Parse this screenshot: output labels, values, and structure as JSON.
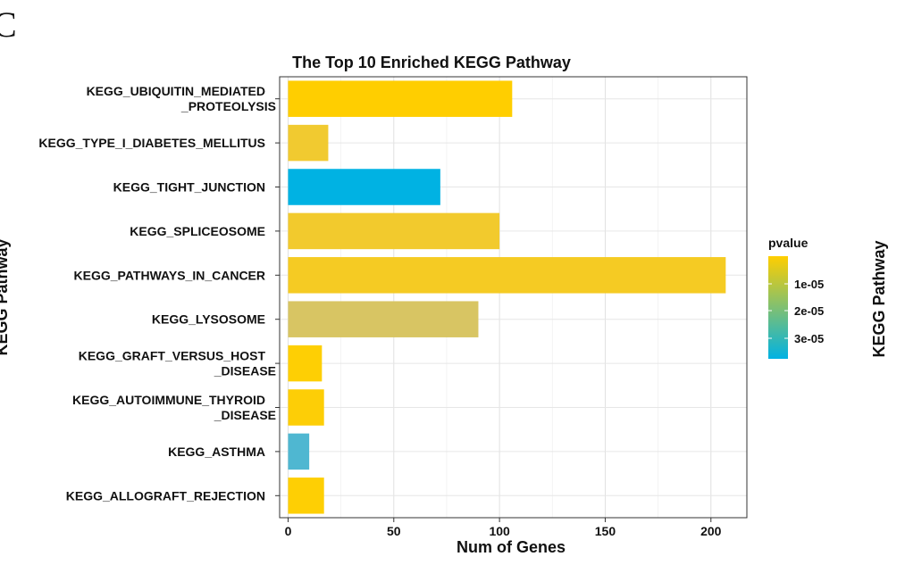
{
  "panel_label": "C",
  "chart_data": {
    "type": "bar",
    "orientation": "horizontal",
    "title": "The Top 10 Enriched KEGG Pathway",
    "xlabel": "Num of Genes",
    "ylabel": "KEGG Pathway",
    "right_label": "KEGG Pathway",
    "xlim": [
      -4,
      217
    ],
    "xticks": [
      "0",
      "50",
      "100",
      "150",
      "200"
    ],
    "xtick_values": [
      0,
      50,
      100,
      150,
      200
    ],
    "grid": true,
    "categories": [
      [
        "KEGG_UBIQUITIN_MEDIATED",
        "_PROTEOLYSIS"
      ],
      [
        "KEGG_TYPE_I_DIABETES_MELLITUS"
      ],
      [
        "KEGG_TIGHT_JUNCTION"
      ],
      [
        "KEGG_SPLICEOSOME"
      ],
      [
        "KEGG_PATHWAYS_IN_CANCER"
      ],
      [
        "KEGG_LYSOSOME"
      ],
      [
        "KEGG_GRAFT_VERSUS_HOST",
        "_DISEASE"
      ],
      [
        "KEGG_AUTOIMMUNE_THYROID",
        "_DISEASE"
      ],
      [
        "KEGG_ASTHMA"
      ],
      [
        "KEGG_ALLOGRAFT_REJECTION"
      ]
    ],
    "values": [
      106,
      19,
      72,
      100,
      207,
      90,
      16,
      17,
      10,
      17
    ],
    "colors": [
      "#FFCE00",
      "#F1CA30",
      "#00B2E3",
      "#F2CA2D",
      "#F5CB23",
      "#D8C563",
      "#FECF04",
      "#FDCE06",
      "#4FB7D1",
      "#FECF04"
    ],
    "legend": {
      "title": "pvalue",
      "position": "right",
      "labels": [
        "1e-05",
        "2e-05",
        "3e-05"
      ],
      "gradient": [
        "#FFCE00",
        "#00B2E3"
      ]
    }
  }
}
